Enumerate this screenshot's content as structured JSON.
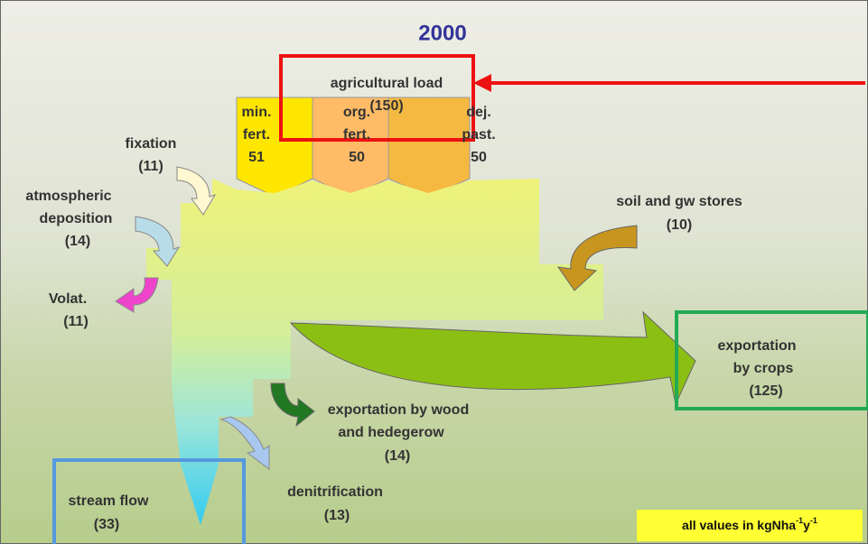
{
  "title": "2000",
  "nodes": [
    {
      "lines": [
        "agricultural load",
        "(150)"
      ]
    },
    {
      "lines": [
        "min.",
        "fert.",
        51
      ]
    },
    {
      "lines": [
        "org.",
        "fert.",
        50
      ]
    },
    {
      "lines": [
        "dej.",
        "past.",
        50
      ]
    },
    {
      "lines": [
        "fixation",
        "(11)"
      ]
    },
    {
      "lines": [
        "atmospheric",
        "deposition",
        "(14)"
      ]
    },
    {
      "lines": [
        "Volat.",
        "(11)"
      ]
    },
    {
      "lines": [
        "soil and gw stores",
        "(10)"
      ]
    },
    {
      "lines": [
        "exportation",
        "by crops",
        "(125)"
      ]
    },
    {
      "lines": [
        "exportation by wood",
        "and hedegerow",
        "(14)"
      ]
    },
    {
      "lines": [
        "denitrification",
        "(13)"
      ]
    },
    {
      "lines": [
        "stream flow",
        "(33)"
      ]
    }
  ],
  "note": {
    "text": "all values in kgNha",
    "sup1": "-1",
    "unit2": "y",
    "sup2": "-1"
  }
}
